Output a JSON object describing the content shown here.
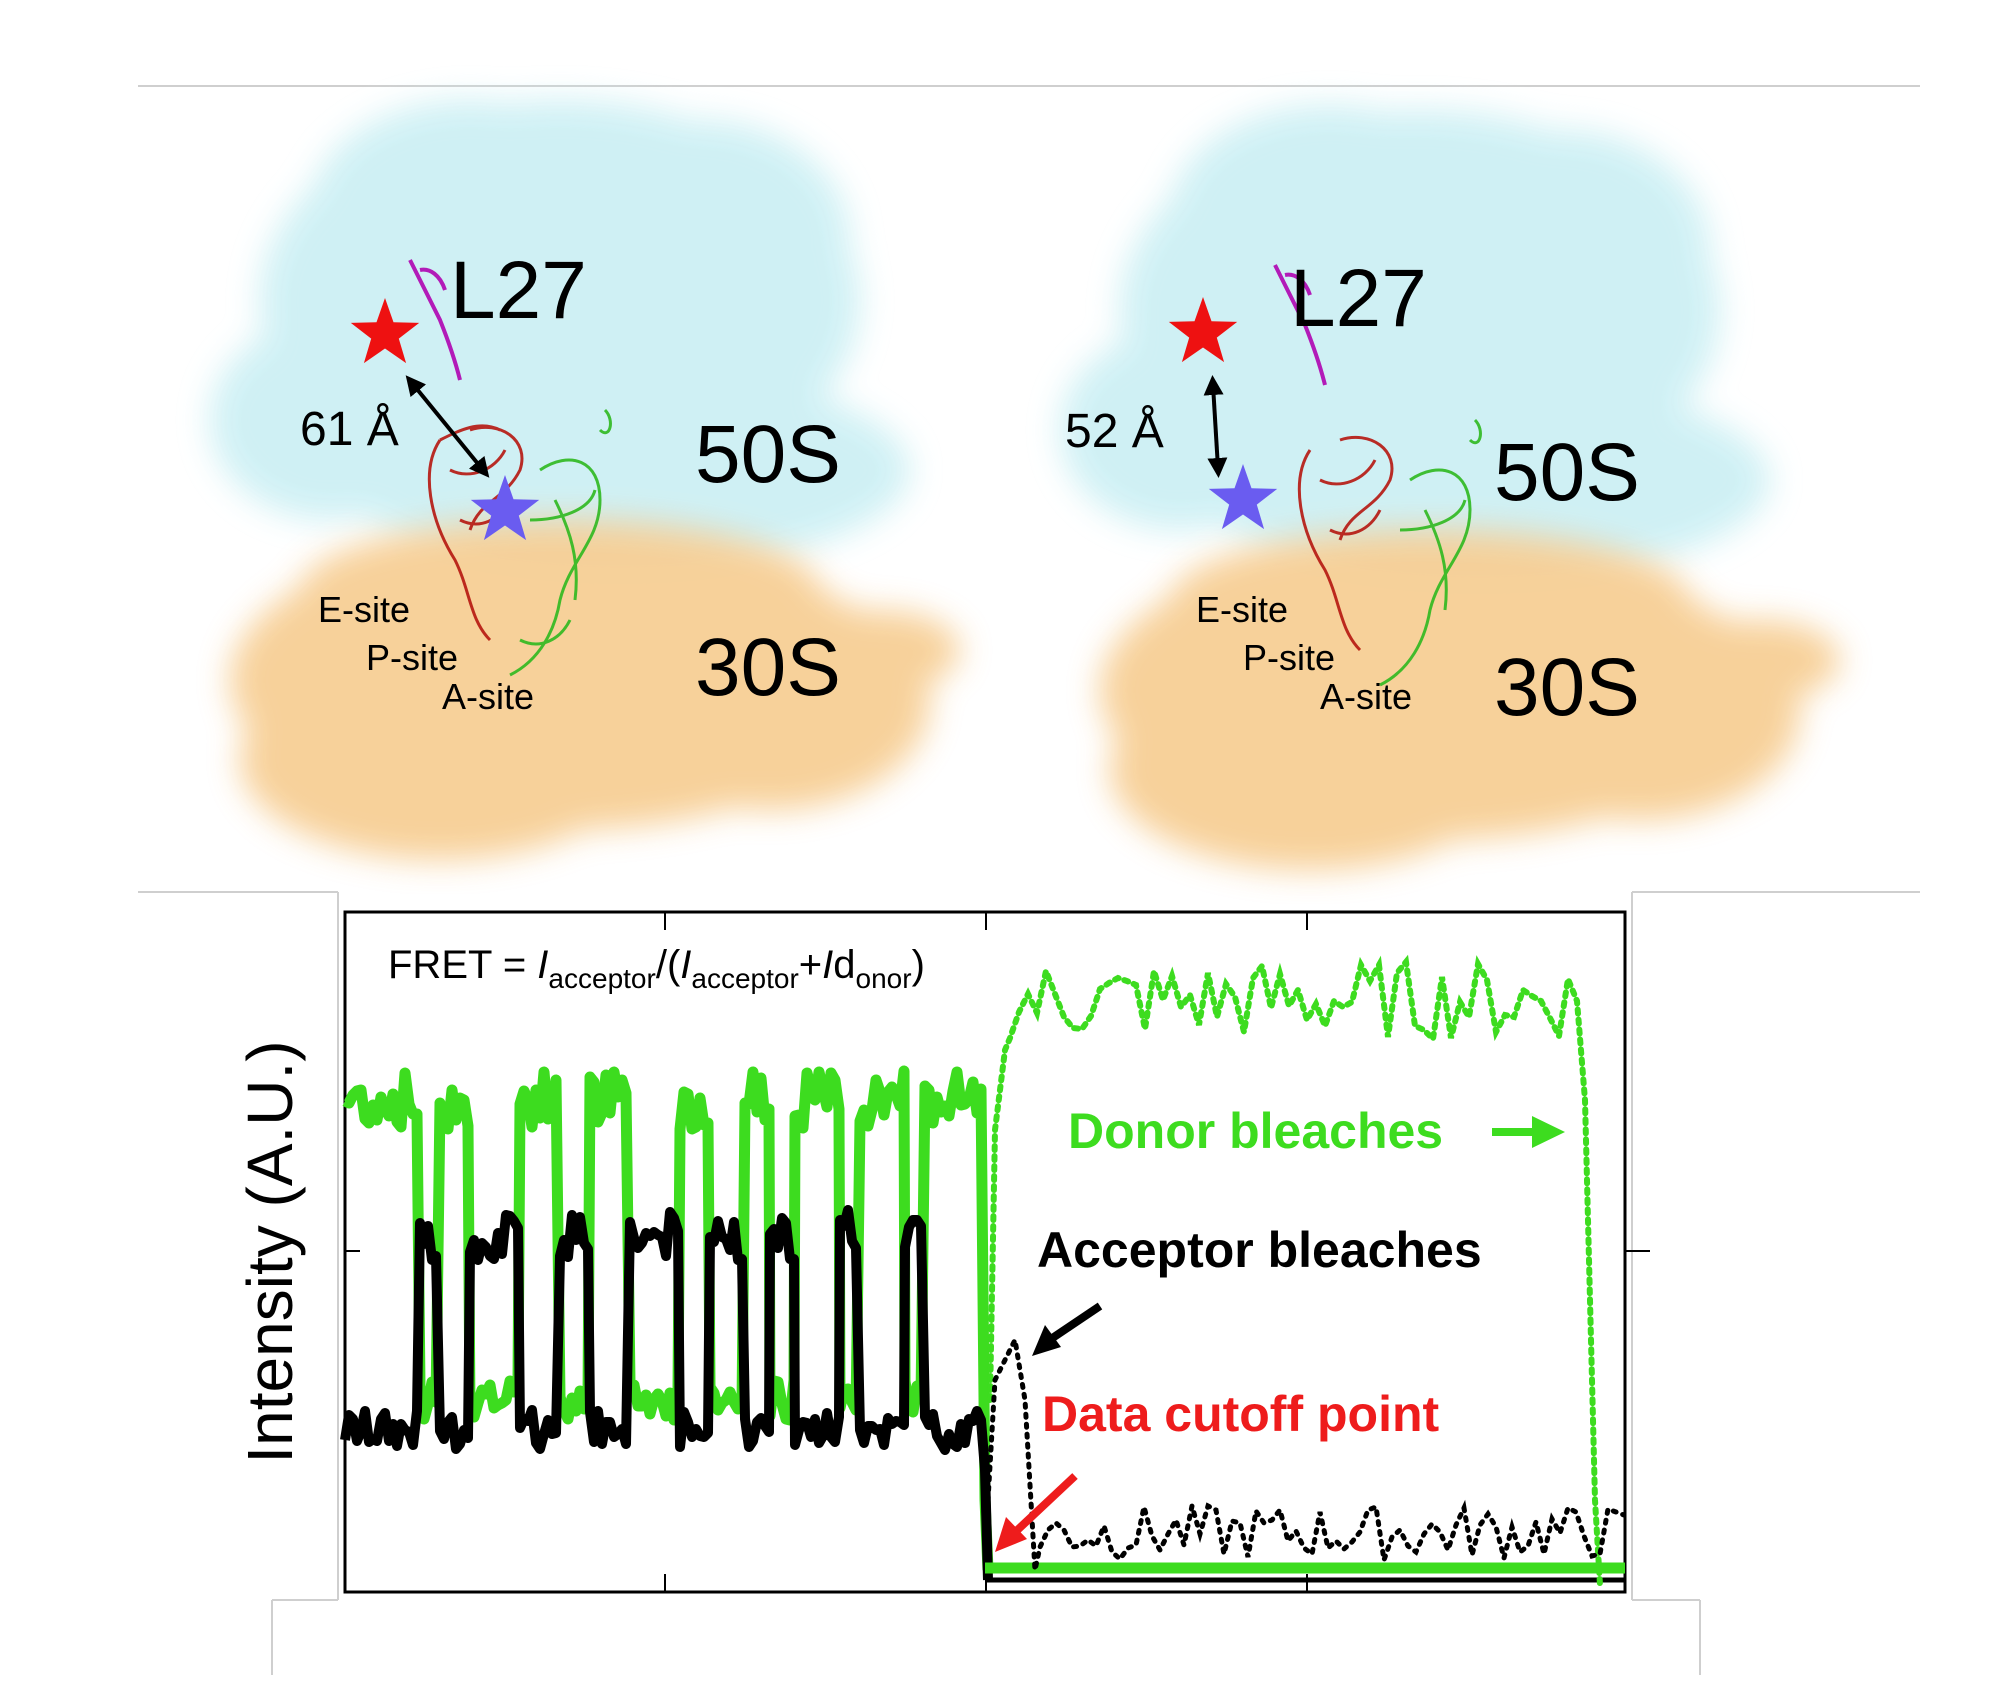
{
  "panels": [
    {
      "protein_label": "L27",
      "distance": "61 Å",
      "large_subunit": "50S",
      "small_subunit": "30S",
      "sites": [
        "E-site",
        "P-site",
        "A-site"
      ]
    },
    {
      "protein_label": "L27",
      "distance": "52 Å",
      "large_subunit": "50S",
      "small_subunit": "30S",
      "sites": [
        "E-site",
        "P-site",
        "A-site"
      ]
    }
  ],
  "trace_panel": {
    "formula": {
      "prefix": "FRET = ",
      "i1": "I",
      "sub1": "acceptor",
      "slash": "/(",
      "i2": "I",
      "sub2": "acceptor",
      "plus": "+",
      "i3": "I",
      "d": "d",
      "sub3": "onor",
      "close": ")"
    },
    "ylabel": "Intensity (A.U.)",
    "annotations": {
      "donor": "Donor bleaches",
      "acceptor": "Acceptor bleaches",
      "cutoff": "Data cutoff point"
    },
    "colors": {
      "donor": "#3ddc1f",
      "acceptor": "#000000",
      "cutoff": "#ee1c1c",
      "large_subunit": "#cdf0f4",
      "small_subunit": "#f7cf95",
      "red_star": "#ee1111",
      "blue_star": "#6a5cf0"
    }
  }
}
